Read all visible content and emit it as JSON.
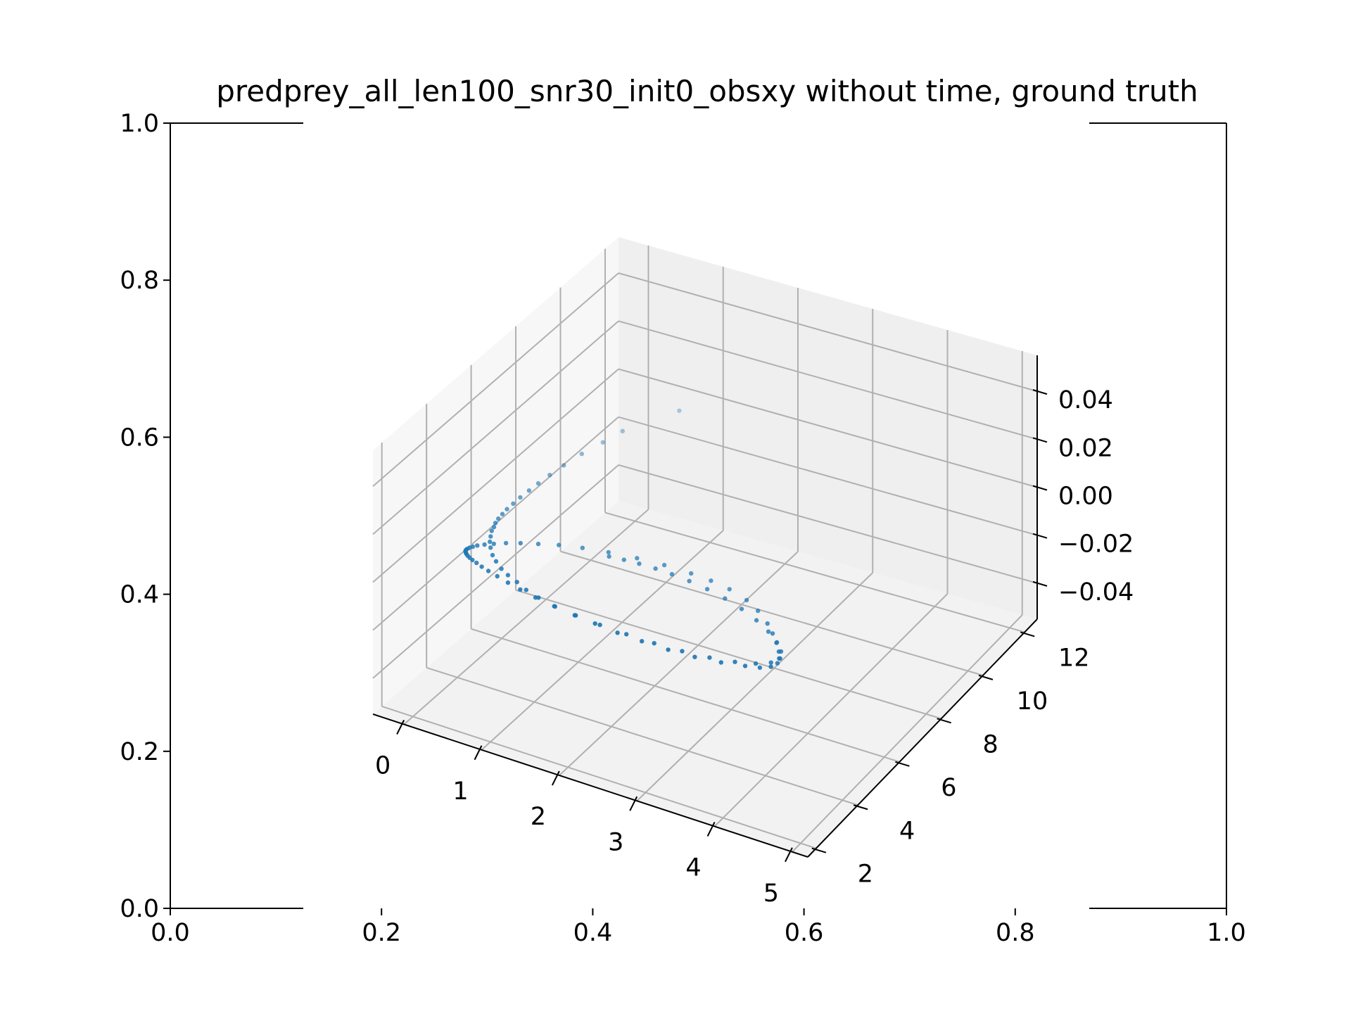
{
  "chart_data": {
    "type": "scatter",
    "projection": "3d",
    "title": "predprey_all_len100_snr30_init0_obsxy without time, ground truth",
    "outer_axes": {
      "xlim": [
        0.0,
        1.0
      ],
      "ylim": [
        0.0,
        1.0
      ],
      "xticks": [
        "0.0",
        "0.2",
        "0.4",
        "0.6",
        "0.8",
        "1.0"
      ],
      "yticks": [
        "0.0",
        "0.2",
        "0.4",
        "0.6",
        "0.8",
        "1.0"
      ]
    },
    "axis3d": {
      "x_ticks": [
        "0",
        "1",
        "2",
        "3",
        "4",
        "5"
      ],
      "y_ticks": [
        "2",
        "4",
        "6",
        "8",
        "10",
        "12"
      ],
      "z_ticks": [
        "−0.04",
        "−0.02",
        "0.00",
        "0.02",
        "0.04"
      ],
      "xlim": [
        -0.4,
        5.2
      ],
      "ylim": [
        1.6,
        12.6
      ],
      "zlim": [
        -0.055,
        0.055
      ],
      "grid": true,
      "marker_color": "#1f77b4"
    },
    "points_xy": [
      [
        0.69,
        11.66
      ],
      [
        0.35,
        10.25
      ],
      [
        0.28,
        9.6
      ],
      [
        0.2,
        8.92
      ],
      [
        0.15,
        8.28
      ],
      [
        0.12,
        7.75
      ],
      [
        0.1,
        7.3
      ],
      [
        0.09,
        6.92
      ],
      [
        0.08,
        6.56
      ],
      [
        0.08,
        6.24
      ],
      [
        0.08,
        5.96
      ],
      [
        0.09,
        5.72
      ],
      [
        0.1,
        5.5
      ],
      [
        0.12,
        5.3
      ],
      [
        0.15,
        5.13
      ],
      [
        0.17,
        4.96
      ],
      [
        0.22,
        4.74
      ],
      [
        0.27,
        4.53
      ],
      [
        0.34,
        4.32
      ],
      [
        0.44,
        4.06
      ],
      [
        0.54,
        3.87
      ],
      [
        0.67,
        3.66
      ],
      [
        0.8,
        3.5
      ],
      [
        0.96,
        3.35
      ],
      [
        1.13,
        3.17
      ],
      [
        1.33,
        3.03
      ],
      [
        1.58,
        2.9
      ],
      [
        1.86,
        2.81
      ],
      [
        2.14,
        2.75
      ],
      [
        2.45,
        2.68
      ],
      [
        2.77,
        2.66
      ],
      [
        3.11,
        2.66
      ],
      [
        3.44,
        2.71
      ],
      [
        3.75,
        2.82
      ],
      [
        4.02,
        2.97
      ],
      [
        4.18,
        3.08
      ],
      [
        4.28,
        3.24
      ],
      [
        4.31,
        3.44
      ],
      [
        4.29,
        3.64
      ],
      [
        4.21,
        3.87
      ],
      [
        4.1,
        4.16
      ],
      [
        3.97,
        4.45
      ],
      [
        3.82,
        4.75
      ],
      [
        3.6,
        5.1
      ],
      [
        3.38,
        5.36
      ],
      [
        3.1,
        5.56
      ],
      [
        2.83,
        5.66
      ],
      [
        2.56,
        5.7
      ],
      [
        2.21,
        5.7
      ],
      [
        1.87,
        5.64
      ],
      [
        1.53,
        5.53
      ],
      [
        1.23,
        5.39
      ],
      [
        0.97,
        5.22
      ],
      [
        0.76,
        5.02
      ],
      [
        0.58,
        4.84
      ],
      [
        0.44,
        4.67
      ],
      [
        0.33,
        4.5
      ],
      [
        0.25,
        4.36
      ],
      [
        0.19,
        4.24
      ],
      [
        0.16,
        4.14
      ],
      [
        0.14,
        4.06
      ],
      [
        0.13,
        3.99
      ],
      [
        0.13,
        3.93
      ],
      [
        0.14,
        3.88
      ],
      [
        0.16,
        3.83
      ],
      [
        0.18,
        3.79
      ],
      [
        0.21,
        3.74
      ],
      [
        0.25,
        3.69
      ],
      [
        0.3,
        3.64
      ],
      [
        0.37,
        3.58
      ],
      [
        0.46,
        3.5
      ],
      [
        0.57,
        3.42
      ],
      [
        0.71,
        3.33
      ],
      [
        0.88,
        3.22
      ],
      [
        1.07,
        3.11
      ],
      [
        1.3,
        3.0
      ],
      [
        1.57,
        2.9
      ],
      [
        1.87,
        2.82
      ],
      [
        2.2,
        2.76
      ],
      [
        2.55,
        2.73
      ],
      [
        2.91,
        2.73
      ],
      [
        3.26,
        2.77
      ],
      [
        3.59,
        2.86
      ],
      [
        3.88,
        3.0
      ],
      [
        4.1,
        3.18
      ],
      [
        4.24,
        3.39
      ],
      [
        4.28,
        3.63
      ],
      [
        4.23,
        3.9
      ],
      [
        4.1,
        4.18
      ],
      [
        3.91,
        4.47
      ],
      [
        3.68,
        4.74
      ],
      [
        3.42,
        4.98
      ],
      [
        3.15,
        5.17
      ],
      [
        2.88,
        5.31
      ],
      [
        2.62,
        5.4
      ],
      [
        2.38,
        5.45
      ],
      [
        2.16,
        5.47
      ],
      [
        1.95,
        5.46
      ],
      [
        1.76,
        5.43
      ],
      [
        1.58,
        5.38
      ]
    ],
    "points_z": 0.0
  }
}
